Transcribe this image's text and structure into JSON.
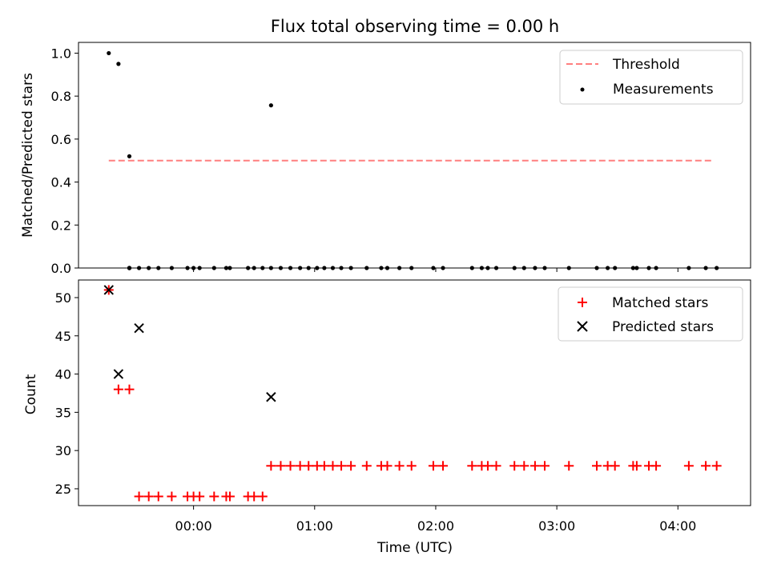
{
  "chart_data": [
    {
      "type": "scatter",
      "title": "Flux total observing time = 0.00 h",
      "ylabel": "Matched/Predicted stars",
      "xlabel": "",
      "ylim": [
        0,
        1.05
      ],
      "yticks": [
        0.0,
        0.2,
        0.4,
        0.6,
        0.8,
        1.0
      ],
      "ytick_labels": [
        "0.0",
        "0.2",
        "0.4",
        "0.6",
        "0.8",
        "1.0"
      ],
      "xlim_hours": [
        -0.95,
        4.6
      ],
      "xticks_hours": [
        0,
        1,
        2,
        3,
        4
      ],
      "grid": false,
      "legend_position": "top-right",
      "threshold": {
        "name": "Threshold",
        "value": 0.5,
        "x_range": [
          -0.7,
          4.3
        ],
        "color": "#ff7f7f"
      },
      "series": [
        {
          "name": "Measurements",
          "color": "#000000",
          "x_hours": [
            -0.7,
            -0.62,
            -0.53,
            -0.53,
            -0.53,
            -0.53,
            -0.53,
            -0.45,
            -0.37,
            -0.29,
            -0.18,
            -0.05,
            0.0,
            0.05,
            0.17,
            0.27,
            0.3,
            0.45,
            0.5,
            0.57,
            0.64,
            0.64,
            0.72,
            0.8,
            0.88,
            0.95,
            1.02,
            1.08,
            1.15,
            1.22,
            1.3,
            1.43,
            1.55,
            1.6,
            1.7,
            1.8,
            1.98,
            2.06,
            2.3,
            2.38,
            2.43,
            2.5,
            2.65,
            2.73,
            2.82,
            2.9,
            3.1,
            3.33,
            3.42,
            3.48,
            3.63,
            3.66,
            3.76,
            3.82,
            4.09,
            4.23,
            4.32
          ],
          "y": [
            1.0,
            0.95,
            0.52,
            0.0,
            0.0,
            0.0,
            0.0,
            0.0,
            0.0,
            0.0,
            0.0,
            0.0,
            0.0,
            0.0,
            0.0,
            0.0,
            0.0,
            0.0,
            0.0,
            0.0,
            0.757,
            0.0,
            0.0,
            0.0,
            0.0,
            0.0,
            0.0,
            0.0,
            0.0,
            0.0,
            0.0,
            0.0,
            0.0,
            0.0,
            0.0,
            0.0,
            0.0,
            0.0,
            0.0,
            0.0,
            0.0,
            0.0,
            0.0,
            0.0,
            0.0,
            0.0,
            0.0,
            0.0,
            0.0,
            0.0,
            0.0,
            0.0,
            0.0,
            0.0,
            0.0,
            0.0,
            0.0
          ]
        }
      ]
    },
    {
      "type": "scatter",
      "title": "",
      "ylabel": "Count",
      "xlabel": "Time (UTC)",
      "ylim": [
        22.8,
        52.3
      ],
      "yticks": [
        25,
        30,
        35,
        40,
        45,
        50
      ],
      "ytick_labels": [
        "25",
        "30",
        "35",
        "40",
        "45",
        "50"
      ],
      "xlim_hours": [
        -0.95,
        4.6
      ],
      "xticks_hours": [
        0,
        1,
        2,
        3,
        4
      ],
      "xtick_labels": [
        "00:00",
        "01:00",
        "02:00",
        "03:00",
        "04:00"
      ],
      "grid": false,
      "legend_position": "top-right",
      "series": [
        {
          "name": "Matched stars",
          "color": "#ff0000",
          "marker": "plus",
          "x_hours": [
            -0.7,
            -0.62,
            -0.53,
            -0.45,
            -0.37,
            -0.29,
            -0.18,
            -0.05,
            0.0,
            0.05,
            0.17,
            0.27,
            0.3,
            0.45,
            0.5,
            0.57,
            0.64,
            0.72,
            0.8,
            0.88,
            0.95,
            1.02,
            1.08,
            1.15,
            1.22,
            1.3,
            1.43,
            1.55,
            1.6,
            1.7,
            1.8,
            1.98,
            2.06,
            2.3,
            2.38,
            2.43,
            2.5,
            2.65,
            2.73,
            2.82,
            2.9,
            3.1,
            3.33,
            3.42,
            3.48,
            3.63,
            3.66,
            3.76,
            3.82,
            4.09,
            4.23,
            4.32
          ],
          "y": [
            51,
            38,
            38,
            24,
            24,
            24,
            24,
            24,
            24,
            24,
            24,
            24,
            24,
            24,
            24,
            24,
            28,
            28,
            28,
            28,
            28,
            28,
            28,
            28,
            28,
            28,
            28,
            28,
            28,
            28,
            28,
            28,
            28,
            28,
            28,
            28,
            28,
            28,
            28,
            28,
            28,
            28,
            28,
            28,
            28,
            28,
            28,
            28,
            28,
            28,
            28,
            28
          ]
        },
        {
          "name": "Predicted stars",
          "color": "#000000",
          "marker": "x",
          "x_hours": [
            -0.7,
            -0.62,
            -0.45,
            0.64
          ],
          "y": [
            51,
            40,
            46,
            37
          ]
        }
      ]
    }
  ]
}
